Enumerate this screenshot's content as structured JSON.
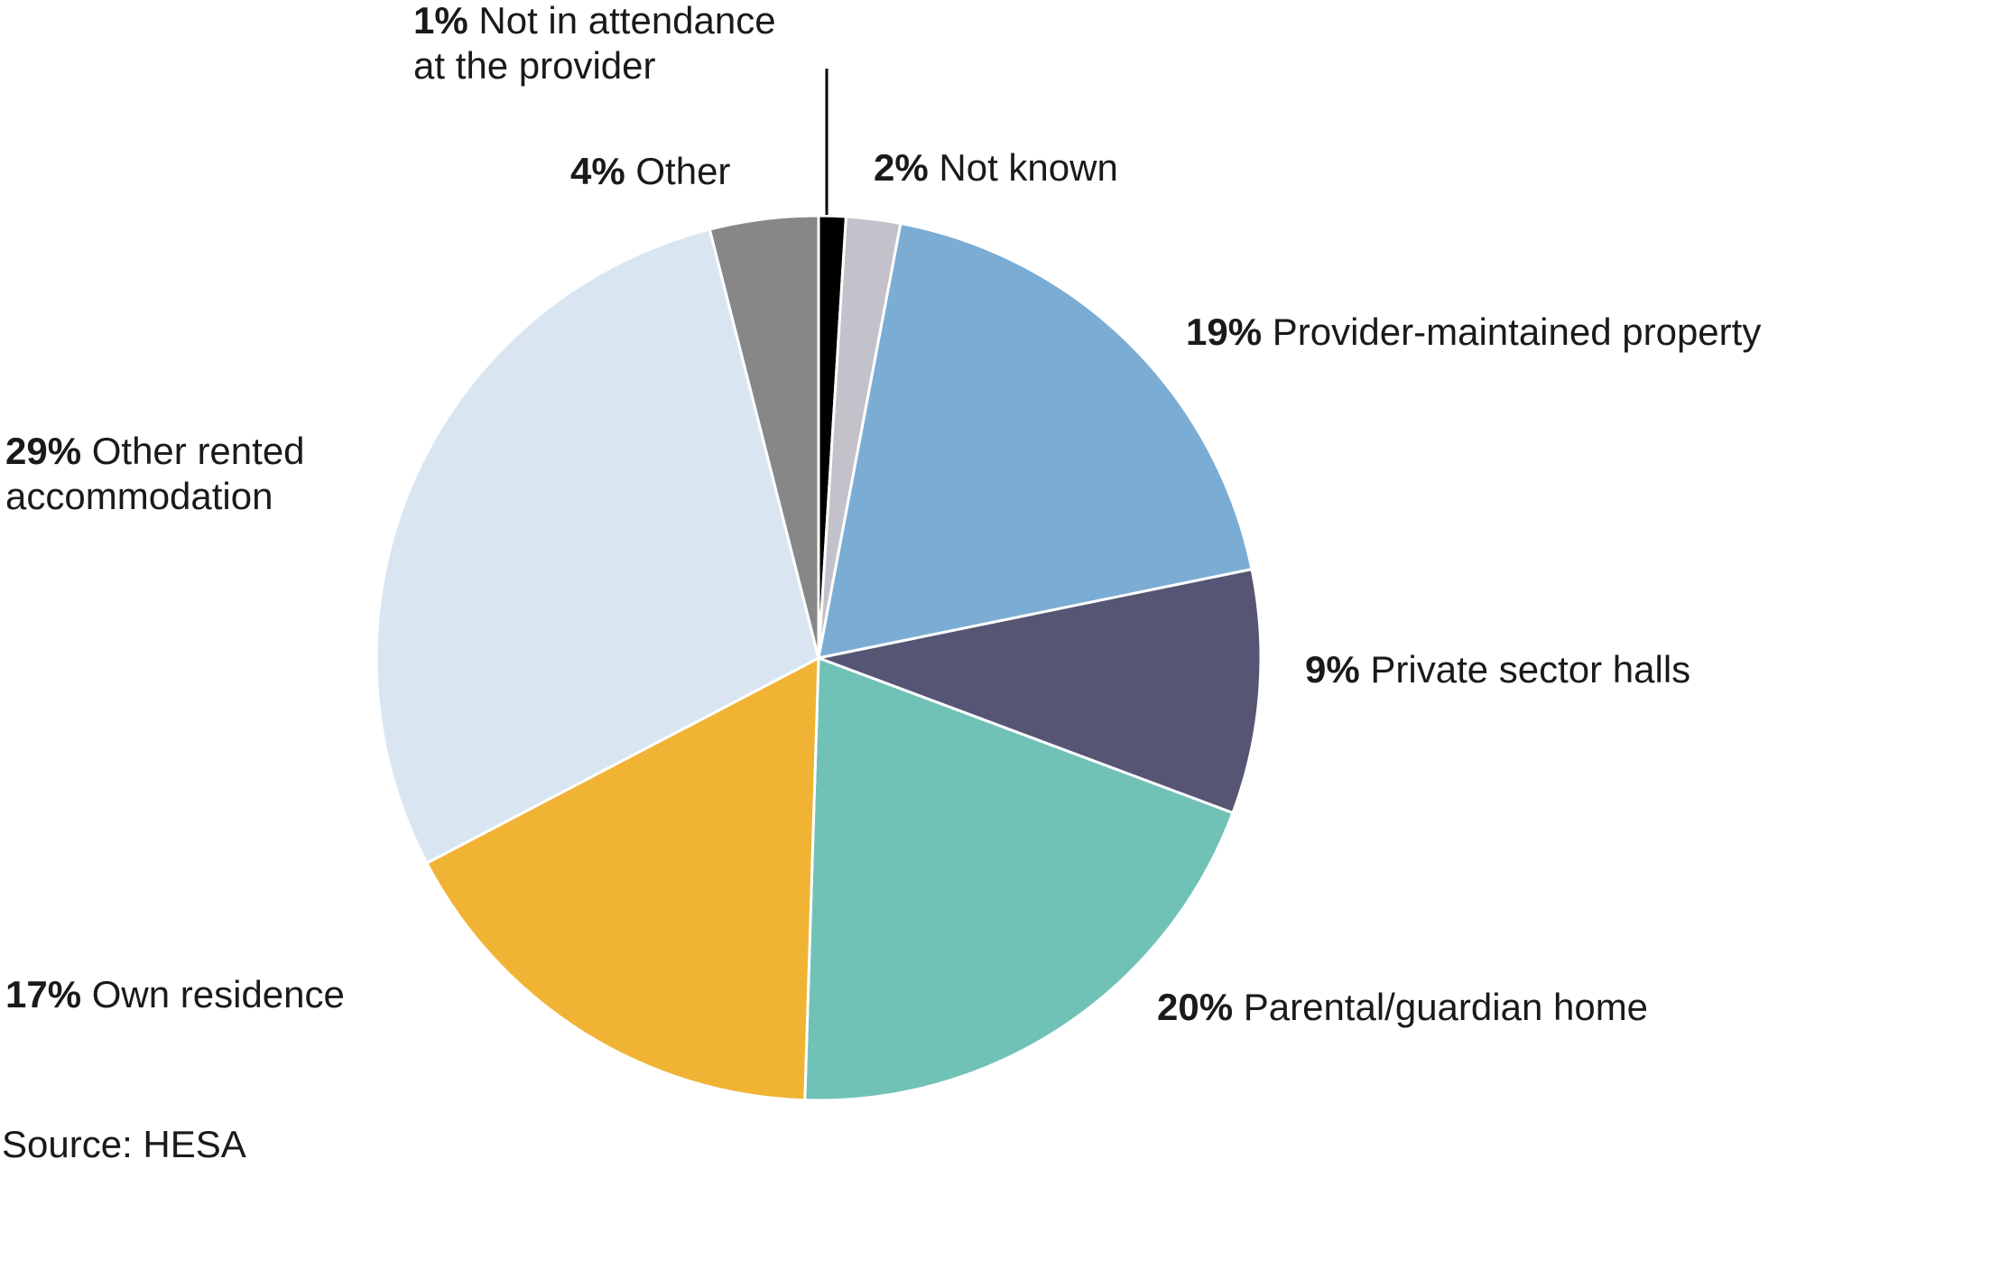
{
  "chart_data": {
    "type": "pie",
    "start": "top",
    "direction": "clockwise",
    "source": "Source: HESA",
    "slices": [
      {
        "label": "Not in attendance at the provider",
        "label_lines": [
          "Not in attendance",
          "at the provider"
        ],
        "value": 1,
        "pct_text": "1%",
        "color": "#000000"
      },
      {
        "label": "Not known",
        "label_lines": [
          "Not known"
        ],
        "value": 2,
        "pct_text": "2%",
        "color": "#c3c2cb"
      },
      {
        "label": "Provider-maintained property",
        "label_lines": [
          "Provider-maintained property"
        ],
        "value": 19,
        "pct_text": "19%",
        "color": "#7badd4"
      },
      {
        "label": "Private sector halls",
        "label_lines": [
          "Private sector halls"
        ],
        "value": 9,
        "pct_text": "9%",
        "color": "#565574"
      },
      {
        "label": "Parental/guardian home",
        "label_lines": [
          "Parental/guardian home"
        ],
        "value": 20,
        "pct_text": "20%",
        "color": "#71c2b6"
      },
      {
        "label": "Own residence",
        "label_lines": [
          "Own residence"
        ],
        "value": 17,
        "pct_text": "17%",
        "color": "#f0b334"
      },
      {
        "label": "Other rented accommodation",
        "label_lines": [
          "Other rented",
          "accommodation"
        ],
        "value": 29,
        "pct_text": "29%",
        "color": "#d9e6f2"
      },
      {
        "label": "Other",
        "label_lines": [
          "Other"
        ],
        "value": 4,
        "pct_text": "4%",
        "color": "#878787"
      }
    ]
  }
}
